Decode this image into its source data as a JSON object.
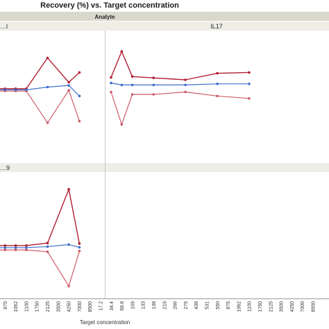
{
  "chart_data": {
    "type": "line",
    "title": "Recovery (%) vs. Target concentration",
    "group_label": "Analyte",
    "xlabel": "Target concentration",
    "ylabel": "",
    "grid": false,
    "colors": {
      "red": "#b01e32",
      "pink": "#cc5a68",
      "blue": "#3f6fc9"
    },
    "panels": [
      {
        "name": "…l",
        "x": [
          "550",
          "875",
          "1062",
          "1100",
          "1750",
          "2125",
          "3500",
          "4250",
          "7000",
          "8500"
        ],
        "series": [
          {
            "color": "red",
            "values": [
              105.0,
              105.0,
              105.0,
              105.0,
              null,
              124.0,
              null,
              109.0,
              115.0,
              null
            ]
          },
          {
            "color": "pink",
            "values": [
              103.6,
              103.6,
              103.6,
              103.6,
              null,
              84.0,
              null,
              104.0,
              85.0,
              null
            ]
          },
          {
            "color": "blue",
            "values": [
              104.3,
              104.3,
              104.3,
              104.3,
              null,
              106.0,
              null,
              107.0,
              100.5,
              null
            ]
          }
        ],
        "ylim": [
          60,
          140
        ]
      },
      {
        "name": "IL17",
        "x": [
          "17.2",
          "34.4",
          "68.8",
          "109",
          "133",
          "138",
          "219",
          "266",
          "275",
          "438",
          "531",
          "550",
          "875",
          "1062",
          "1100",
          "1750",
          "2125",
          "3500",
          "4250",
          "7000",
          "8500"
        ],
        "series": [
          {
            "color": "red",
            "values": [
              112.0,
              128.0,
              112.5,
              null,
              111.7,
              null,
              null,
              110.5,
              null,
              null,
              114.5,
              null,
              null,
              115.0,
              null,
              null,
              null,
              null,
              null,
              null,
              null
            ]
          },
          {
            "color": "pink",
            "values": [
              103.0,
              83.0,
              101.5,
              null,
              101.5,
              null,
              null,
              103.0,
              null,
              null,
              100.5,
              null,
              null,
              99.0,
              null,
              null,
              null,
              null,
              null,
              null,
              null
            ]
          },
          {
            "color": "blue",
            "values": [
              108.5,
              107.3,
              107.3,
              null,
              107.3,
              null,
              null,
              107.3,
              null,
              null,
              108.0,
              null,
              null,
              108.0,
              null,
              null,
              null,
              null,
              null,
              null,
              null
            ]
          }
        ],
        "ylim": [
          60,
          140
        ]
      },
      {
        "name": "…9",
        "x": [
          "550",
          "875",
          "1062",
          "1100",
          "1750",
          "2125",
          "3500",
          "4250",
          "7000",
          "8500"
        ],
        "series": [
          {
            "color": "red",
            "values": [
              105.0,
              105.0,
              105.0,
              105.0,
              null,
              108.7,
              null,
              187.0,
              108.0,
              null
            ]
          },
          {
            "color": "pink",
            "values": [
              98.7,
              98.7,
              98.7,
              98.7,
              null,
              96.0,
              null,
              46.0,
              97.0,
              null
            ]
          },
          {
            "color": "blue",
            "values": [
              102.0,
              102.0,
              102.0,
              102.0,
              null,
              103.5,
              null,
              106.5,
              102.5,
              null
            ]
          }
        ],
        "ylim": [
          30,
          210
        ]
      }
    ],
    "x_tick_labels": [
      "550",
      "875",
      "1062",
      "1100",
      "1750",
      "2125",
      "3500",
      "4250",
      "7000",
      "8500",
      "17.2",
      "34.4",
      "68.8",
      "109",
      "133",
      "138",
      "219",
      "266",
      "275",
      "438",
      "531",
      "550",
      "875",
      "1062",
      "1100",
      "1750",
      "2125",
      "3500",
      "4250",
      "7000",
      "8500"
    ]
  }
}
